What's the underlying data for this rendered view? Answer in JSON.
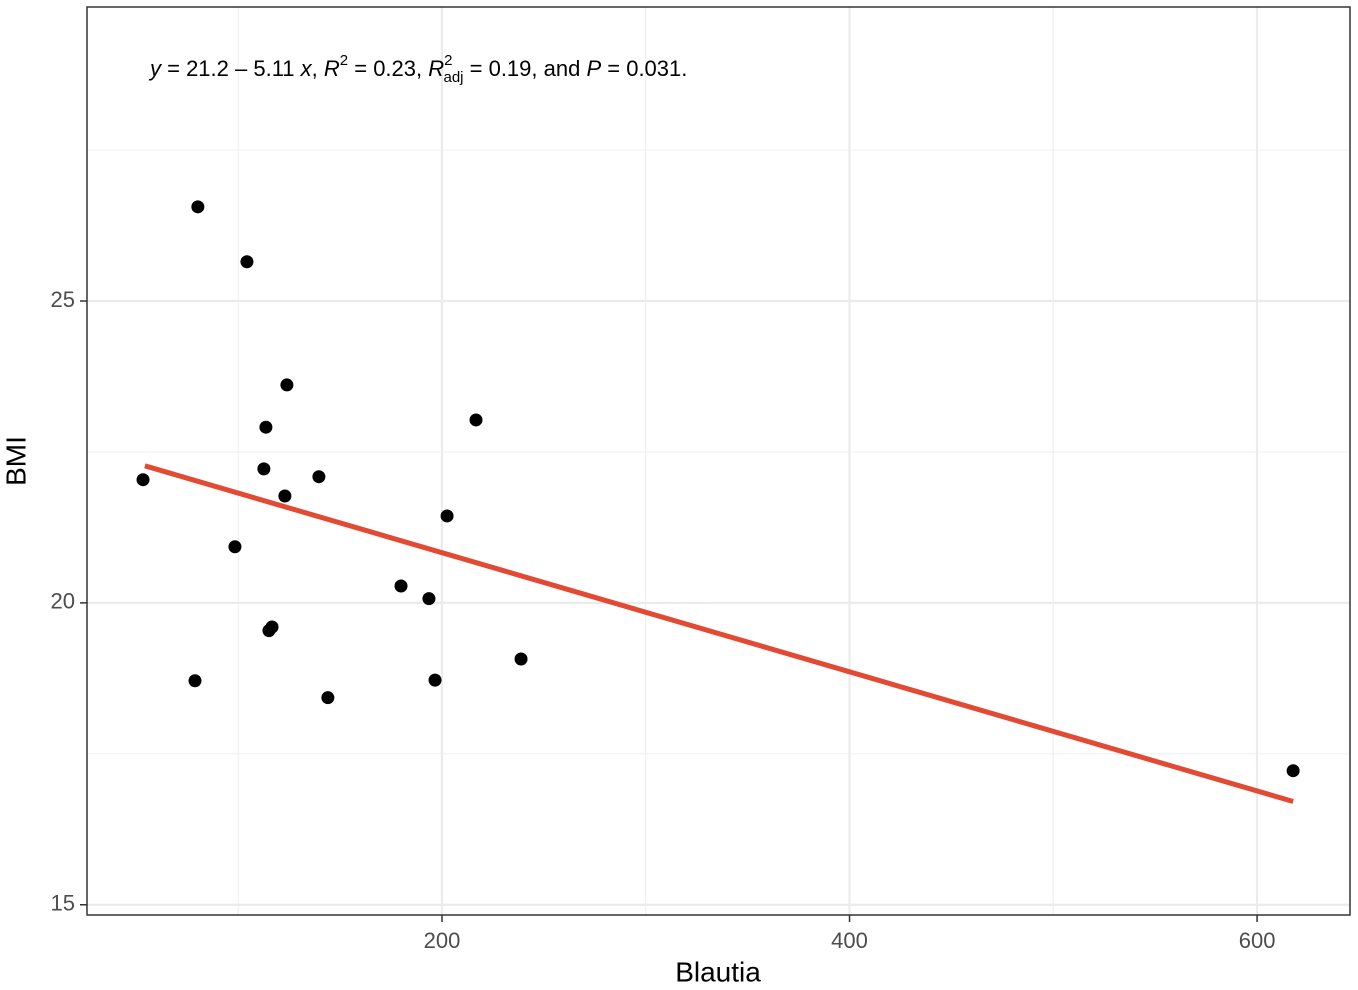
{
  "chart_data": {
    "type": "scatter",
    "x_label": "Blautia",
    "y_label": "BMI",
    "annotation": [
      "y",
      " = 21.2 – 5.11 ",
      "x",
      ", ",
      "R",
      "2",
      " = 0.23, ",
      "R",
      "2",
      "adj",
      " = 0.19, and ",
      "P",
      " = 0.031."
    ],
    "xlim": [
      25.8,
      645.6
    ],
    "ylim": [
      14.83,
      29.87
    ],
    "xticks": [
      200,
      400,
      600
    ],
    "yticks": [
      15,
      20,
      25
    ],
    "x_minor_ticks": [
      100,
      300,
      500
    ],
    "y_minor_ticks": [
      17.5,
      22.5,
      27.5
    ],
    "grid": true,
    "series": [
      {
        "color": "#000000",
        "x": [
          53.3,
          80.2,
          104.3,
          123.9,
          113.6,
          112.6,
          139.6,
          122.9,
          98.4,
          216.7,
          202.5,
          179.9,
          193.6,
          116.6,
          115.1,
          78.8,
          144.0,
          196.6,
          238.8,
          617.7
        ],
        "values": [
          22.04,
          26.56,
          25.65,
          23.61,
          22.91,
          22.22,
          22.09,
          21.77,
          20.93,
          23.03,
          21.44,
          20.28,
          20.07,
          19.6,
          19.54,
          18.71,
          18.43,
          18.72,
          19.07,
          17.22
        ]
      }
    ],
    "fit": {
      "color": "#e34a33",
      "x": [
        54.2,
        617.7
      ],
      "values": [
        22.27,
        16.71
      ]
    }
  }
}
